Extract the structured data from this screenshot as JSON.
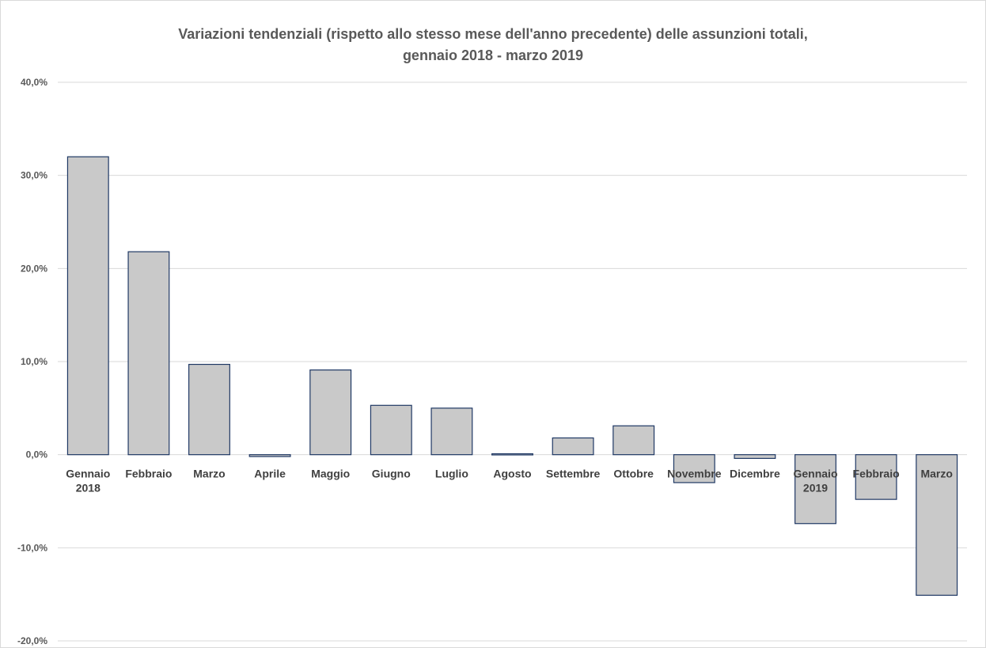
{
  "chart_data": {
    "type": "bar",
    "title": "Variazioni tendenziali (rispetto allo stesso mese dell'anno precedente) delle assunzioni totali,",
    "subtitle": "gennaio 2018 - marzo 2019",
    "categories": [
      [
        "Gennaio",
        "2018"
      ],
      [
        "Febbraio"
      ],
      [
        "Marzo"
      ],
      [
        "Aprile"
      ],
      [
        "Maggio"
      ],
      [
        "Giugno"
      ],
      [
        "Luglio"
      ],
      [
        "Agosto"
      ],
      [
        "Settembre"
      ],
      [
        "Ottobre"
      ],
      [
        "Novembre"
      ],
      [
        "Dicembre"
      ],
      [
        "Gennaio",
        "2019"
      ],
      [
        "Febbraio"
      ],
      [
        "Marzo"
      ]
    ],
    "values": [
      32.0,
      21.8,
      9.7,
      -0.2,
      9.1,
      5.3,
      5.0,
      0.1,
      1.8,
      3.1,
      -3.0,
      -0.4,
      -7.4,
      -4.8,
      -15.1
    ],
    "ylim": [
      -20,
      40
    ],
    "yticks": [
      "40,0%",
      "30,0%",
      "20,0%",
      "10,0%",
      "0,0%",
      "-10,0%",
      "-20,0%"
    ],
    "ytick_values": [
      40,
      30,
      20,
      10,
      0,
      -10,
      -20
    ],
    "grid": true,
    "bar_fill": "#c9c9c9",
    "bar_stroke": "#1f3864",
    "grid_color": "#d9d9d9"
  }
}
